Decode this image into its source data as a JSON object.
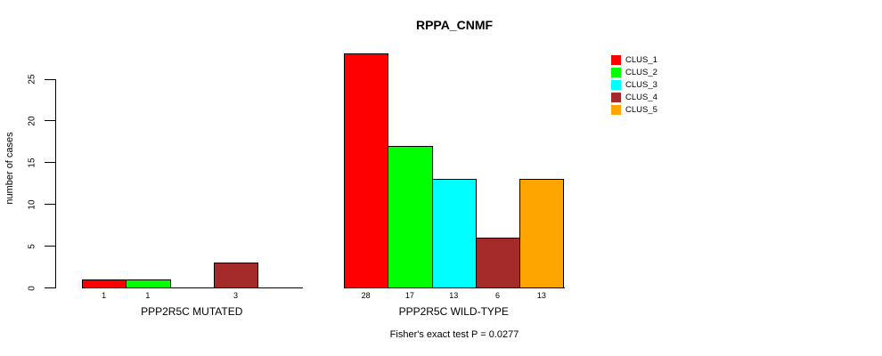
{
  "title": "RPPA_CNMF",
  "chart_data": {
    "type": "bar",
    "title": "RPPA_CNMF",
    "xlabel": "",
    "ylabel": "number of cases",
    "ylim": [
      0,
      25
    ],
    "yticks": [
      0,
      5,
      10,
      15,
      20,
      25
    ],
    "grid": false,
    "legend_position": "top-right",
    "series": [
      "CLUS_1",
      "CLUS_2",
      "CLUS_3",
      "CLUS_4",
      "CLUS_5"
    ],
    "series_colors": [
      "#ff0000",
      "#00ff00",
      "#00ffff",
      "#a52a2a",
      "#ffa500"
    ],
    "groups": [
      {
        "label": "PPP2R5C MUTATED",
        "values": [
          1,
          1,
          0,
          3,
          0
        ]
      },
      {
        "label": "PPP2R5C WILD-TYPE",
        "values": [
          28,
          17,
          13,
          6,
          13
        ]
      }
    ],
    "bar_value_labels": [
      [
        "1",
        "1",
        "",
        "3",
        ""
      ],
      [
        "28",
        "17",
        "13",
        "6",
        "13"
      ]
    ],
    "annotation": "Fisher's exact test P = 0.0277"
  }
}
